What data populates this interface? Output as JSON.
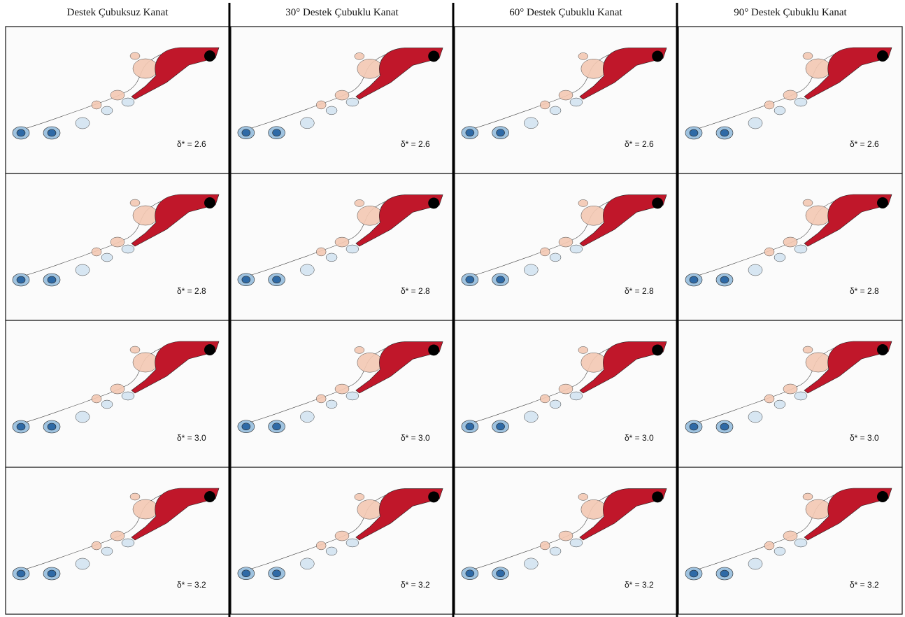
{
  "columns": [
    {
      "title": "Destek Çubuksuz Kanat",
      "panels": [
        {
          "label": "δ* = 2.6"
        },
        {
          "label": "δ* = 2.8"
        },
        {
          "label": "δ* = 3.0"
        },
        {
          "label": "δ* = 3.2"
        }
      ]
    },
    {
      "title": "30° Destek Çubuklu Kanat",
      "panels": [
        {
          "label": "δ* = 2.6"
        },
        {
          "label": "δ* = 2.8"
        },
        {
          "label": "δ* = 3.0"
        },
        {
          "label": "δ* = 3.2"
        }
      ]
    },
    {
      "title": "60° Destek Çubuklu Kanat",
      "panels": [
        {
          "label": "δ* = 2.6"
        },
        {
          "label": "δ* = 2.8"
        },
        {
          "label": "δ* = 3.0"
        },
        {
          "label": "δ* = 3.2"
        }
      ]
    },
    {
      "title": "90° Destek Çubuklu Kanat",
      "panels": [
        {
          "label": "δ* = 2.6"
        },
        {
          "label": "δ* = 2.8"
        },
        {
          "label": "δ* = 3.0"
        },
        {
          "label": "δ* = 3.2"
        }
      ]
    }
  ]
}
